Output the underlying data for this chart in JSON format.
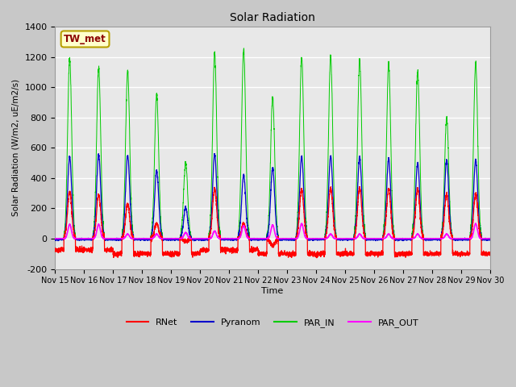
{
  "title": "Solar Radiation",
  "ylabel": "Solar Radiation (W/m2, uE/m2/s)",
  "xlabel": "Time",
  "ylim": [
    -200,
    1400
  ],
  "xlim": [
    0,
    15
  ],
  "plot_bg_color": "#e8e8e8",
  "fig_bg_color": "#c8c8c8",
  "grid_color": "#ffffff",
  "station_label": "TW_met",
  "station_label_color": "#8b0000",
  "station_label_bg": "#ffffcc",
  "station_label_border": "#b8a000",
  "series": {
    "RNet": {
      "color": "#ff0000"
    },
    "Pyranom": {
      "color": "#0000cc"
    },
    "PAR_IN": {
      "color": "#00cc00"
    },
    "PAR_OUT": {
      "color": "#ff00ff"
    }
  },
  "xtick_labels": [
    "Nov 15",
    "Nov 16",
    "Nov 17",
    "Nov 18",
    "Nov 19",
    "Nov 20",
    "Nov 21",
    "Nov 22",
    "Nov 23",
    "Nov 24",
    "Nov 25",
    "Nov 26",
    "Nov 27",
    "Nov 28",
    "Nov 29",
    "Nov 30"
  ],
  "ytick_values": [
    -200,
    0,
    200,
    400,
    600,
    800,
    1000,
    1200,
    1400
  ],
  "num_days": 15,
  "day_peaks": {
    "PAR_IN": [
      1190,
      1130,
      1110,
      950,
      500,
      1230,
      1250,
      930,
      1200,
      1200,
      1180,
      1150,
      1100,
      800,
      1160
    ],
    "Pyranom": [
      540,
      555,
      550,
      450,
      205,
      560,
      420,
      465,
      540,
      545,
      540,
      530,
      500,
      520,
      520
    ],
    "RNet_day": [
      310,
      290,
      225,
      100,
      -20,
      330,
      100,
      -50,
      325,
      335,
      335,
      330,
      330,
      295,
      295
    ],
    "RNet_night": [
      -75,
      -75,
      -100,
      -100,
      -100,
      -75,
      -75,
      -100,
      -100,
      -100,
      -100,
      -100,
      -100,
      -100,
      -100
    ],
    "PAR_OUT": [
      95,
      95,
      30,
      30,
      40,
      50,
      85,
      90,
      100,
      30,
      30,
      30,
      30,
      30,
      100
    ]
  }
}
